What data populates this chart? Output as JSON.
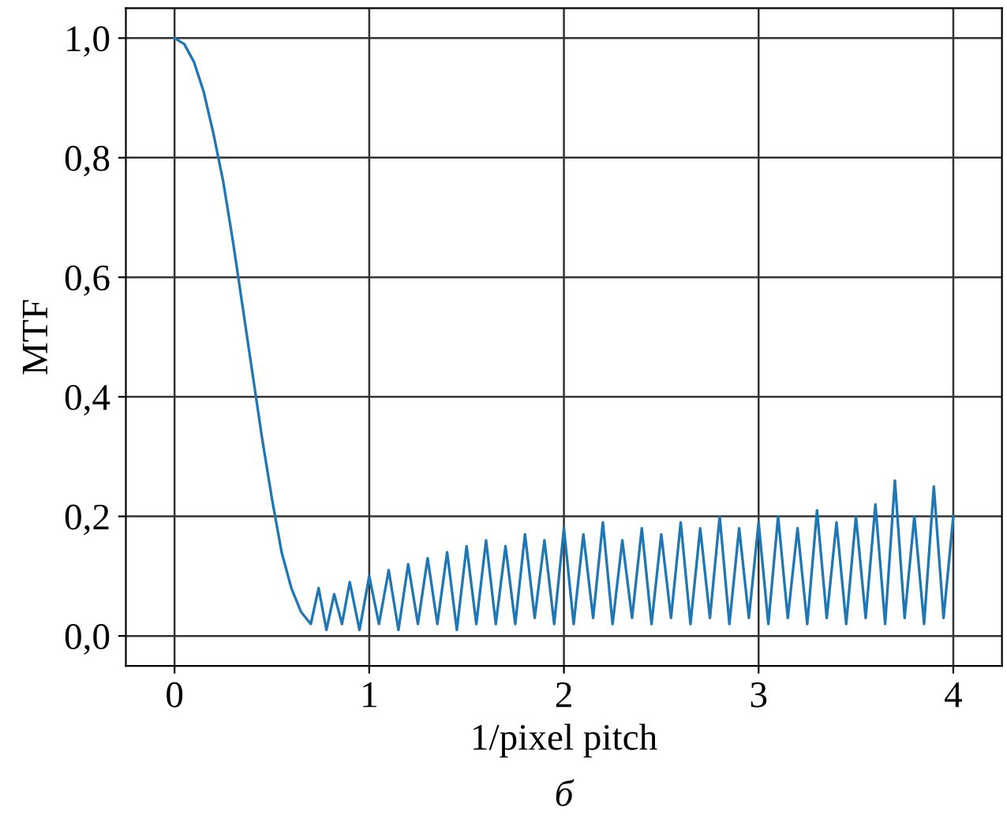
{
  "chart_data": {
    "type": "line",
    "xlabel": "1/pixel pitch",
    "ylabel": "MTF",
    "annotations": [
      "б"
    ],
    "series": [
      {
        "color": "#1f77b4",
        "x": [
          0,
          0.05,
          0.1,
          0.15,
          0.2,
          0.25,
          0.3,
          0.35,
          0.4,
          0.45,
          0.5,
          0.55,
          0.6,
          0.65,
          0.7,
          0.74,
          0.78,
          0.82,
          0.86,
          0.9,
          0.95,
          1.0,
          1.05,
          1.1,
          1.15,
          1.2,
          1.25,
          1.3,
          1.35,
          1.4,
          1.45,
          1.5,
          1.55,
          1.6,
          1.65,
          1.7,
          1.75,
          1.8,
          1.85,
          1.9,
          1.95,
          2.0,
          2.05,
          2.1,
          2.15,
          2.2,
          2.25,
          2.3,
          2.35,
          2.4,
          2.45,
          2.5,
          2.55,
          2.6,
          2.65,
          2.7,
          2.75,
          2.8,
          2.85,
          2.9,
          2.95,
          3.0,
          3.05,
          3.1,
          3.15,
          3.2,
          3.25,
          3.3,
          3.35,
          3.4,
          3.45,
          3.5,
          3.55,
          3.6,
          3.65,
          3.7,
          3.75,
          3.8,
          3.85,
          3.9,
          3.95,
          4.0
        ],
        "values": [
          1.0,
          0.99,
          0.96,
          0.91,
          0.84,
          0.76,
          0.66,
          0.55,
          0.44,
          0.33,
          0.23,
          0.14,
          0.08,
          0.04,
          0.02,
          0.08,
          0.01,
          0.07,
          0.02,
          0.09,
          0.01,
          0.1,
          0.02,
          0.11,
          0.01,
          0.12,
          0.02,
          0.13,
          0.02,
          0.14,
          0.01,
          0.15,
          0.02,
          0.16,
          0.02,
          0.15,
          0.02,
          0.17,
          0.03,
          0.16,
          0.02,
          0.18,
          0.02,
          0.17,
          0.03,
          0.19,
          0.02,
          0.16,
          0.03,
          0.18,
          0.02,
          0.17,
          0.03,
          0.19,
          0.02,
          0.18,
          0.03,
          0.2,
          0.02,
          0.18,
          0.03,
          0.19,
          0.02,
          0.2,
          0.03,
          0.18,
          0.02,
          0.21,
          0.03,
          0.19,
          0.02,
          0.2,
          0.03,
          0.22,
          0.02,
          0.26,
          0.03,
          0.2,
          0.02,
          0.25,
          0.03,
          0.2
        ]
      }
    ],
    "xlim": [
      -0.25,
      4.25
    ],
    "xticks": [
      0,
      1,
      2,
      3,
      4
    ],
    "ylim": [
      -0.05,
      1.05
    ],
    "yticks": [
      {
        "value": 0,
        "label": "0,0"
      },
      {
        "value": 0.2,
        "label": "0,2"
      },
      {
        "value": 0.4,
        "label": "0,4"
      },
      {
        "value": 0.6,
        "label": "0,6"
      },
      {
        "value": 0.8,
        "label": "0,8"
      },
      {
        "value": 1.0,
        "label": "1,0"
      }
    ],
    "grid": true,
    "legend": false
  }
}
